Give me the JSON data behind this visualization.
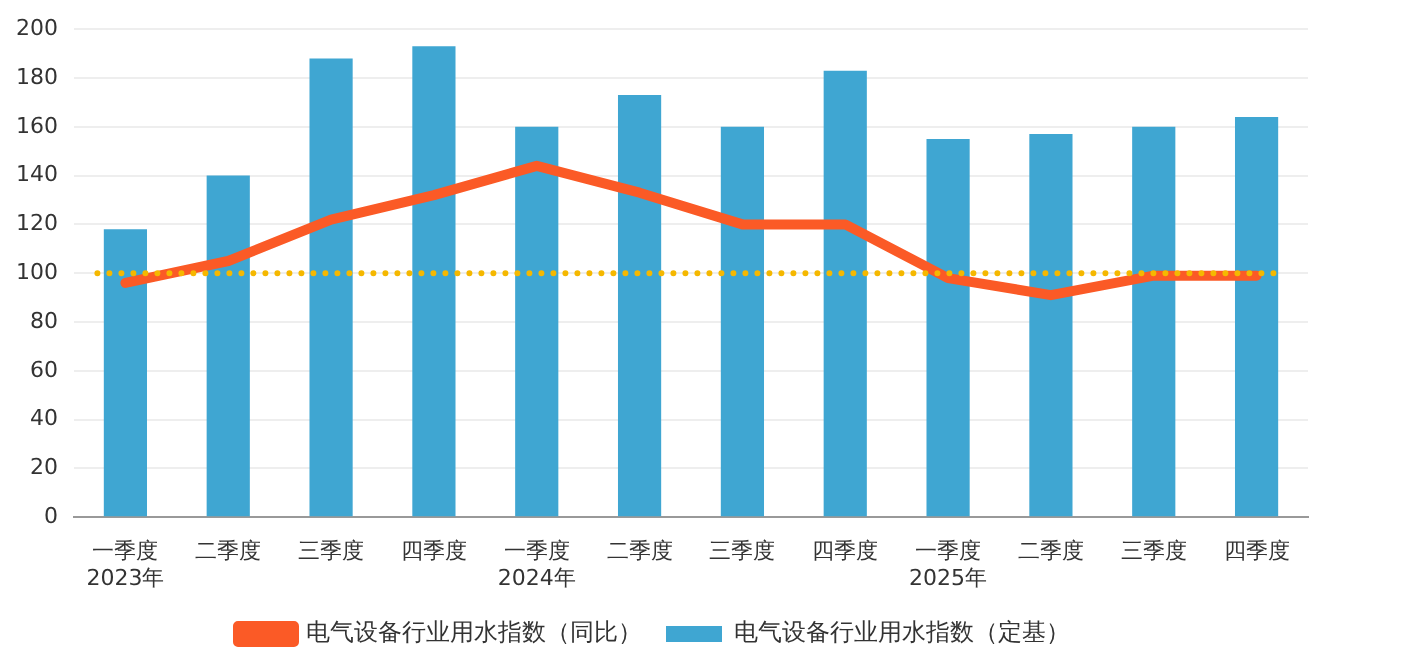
{
  "chart_data": {
    "type": "bar",
    "categories": [
      "一季度\n2023年",
      "二季度",
      "三季度",
      "四季度",
      "一季度\n2024年",
      "二季度",
      "三季度",
      "四季度",
      "一季度\n2025年",
      "二季度",
      "三季度",
      "四季度"
    ],
    "series": [
      {
        "name": "电气设备行业用水指数（定基）",
        "color": "#3fa6d2",
        "values": [
          118,
          140,
          188,
          193,
          160,
          173,
          160,
          183,
          155,
          157,
          160,
          164
        ]
      },
      {
        "name": "电气设备行业用水指数（同比）",
        "type": "line",
        "color": "#fb5a26",
        "values": [
          96,
          105,
          122,
          132,
          144,
          133,
          120,
          120,
          98,
          91,
          99,
          99
        ]
      }
    ],
    "ylim": [
      0,
      200
    ],
    "yticks": [
      0,
      20,
      40,
      60,
      80,
      100,
      120,
      140,
      160,
      180,
      200
    ],
    "grid": "y",
    "legend": "bottom",
    "marker": "none",
    "line_style": "solid",
    "ref_lines": [
      {
        "axis": "y",
        "value": 100,
        "color": "#f5b800",
        "line_style": "dotted"
      }
    ]
  }
}
